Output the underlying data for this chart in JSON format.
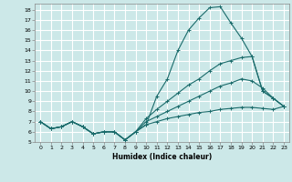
{
  "xlabel": "Humidex (Indice chaleur)",
  "background_color": "#cce8e8",
  "grid_color": "#b0d0d0",
  "line_color": "#1a6b6b",
  "xlim": [
    -0.5,
    23.5
  ],
  "ylim": [
    5,
    18.6
  ],
  "xticks": [
    0,
    1,
    2,
    3,
    4,
    5,
    6,
    7,
    8,
    9,
    10,
    11,
    12,
    13,
    14,
    15,
    16,
    17,
    18,
    19,
    20,
    21,
    22,
    23
  ],
  "yticks": [
    5,
    6,
    7,
    8,
    9,
    10,
    11,
    12,
    13,
    14,
    15,
    16,
    17,
    18
  ],
  "series": [
    [
      7.0,
      6.3,
      6.5,
      7.0,
      6.5,
      5.8,
      6.0,
      6.0,
      5.2,
      6.0,
      6.7,
      9.5,
      11.2,
      14.0,
      16.0,
      17.2,
      18.2,
      18.3,
      16.7,
      15.2,
      13.4,
      10.0,
      9.3,
      8.5
    ],
    [
      7.0,
      6.3,
      6.5,
      7.0,
      6.5,
      5.8,
      6.0,
      6.0,
      5.2,
      6.0,
      7.3,
      8.2,
      9.0,
      9.8,
      10.6,
      11.2,
      12.0,
      12.7,
      13.0,
      13.3,
      13.4,
      10.0,
      9.3,
      8.5
    ],
    [
      7.0,
      6.3,
      6.5,
      7.0,
      6.5,
      5.8,
      6.0,
      6.0,
      5.2,
      6.0,
      7.0,
      7.5,
      8.0,
      8.5,
      9.0,
      9.5,
      10.0,
      10.5,
      10.8,
      11.2,
      11.0,
      10.3,
      9.3,
      8.5
    ],
    [
      7.0,
      6.3,
      6.5,
      7.0,
      6.5,
      5.8,
      6.0,
      6.0,
      5.2,
      6.0,
      6.7,
      7.0,
      7.3,
      7.5,
      7.7,
      7.9,
      8.0,
      8.2,
      8.3,
      8.4,
      8.4,
      8.3,
      8.2,
      8.5
    ]
  ]
}
